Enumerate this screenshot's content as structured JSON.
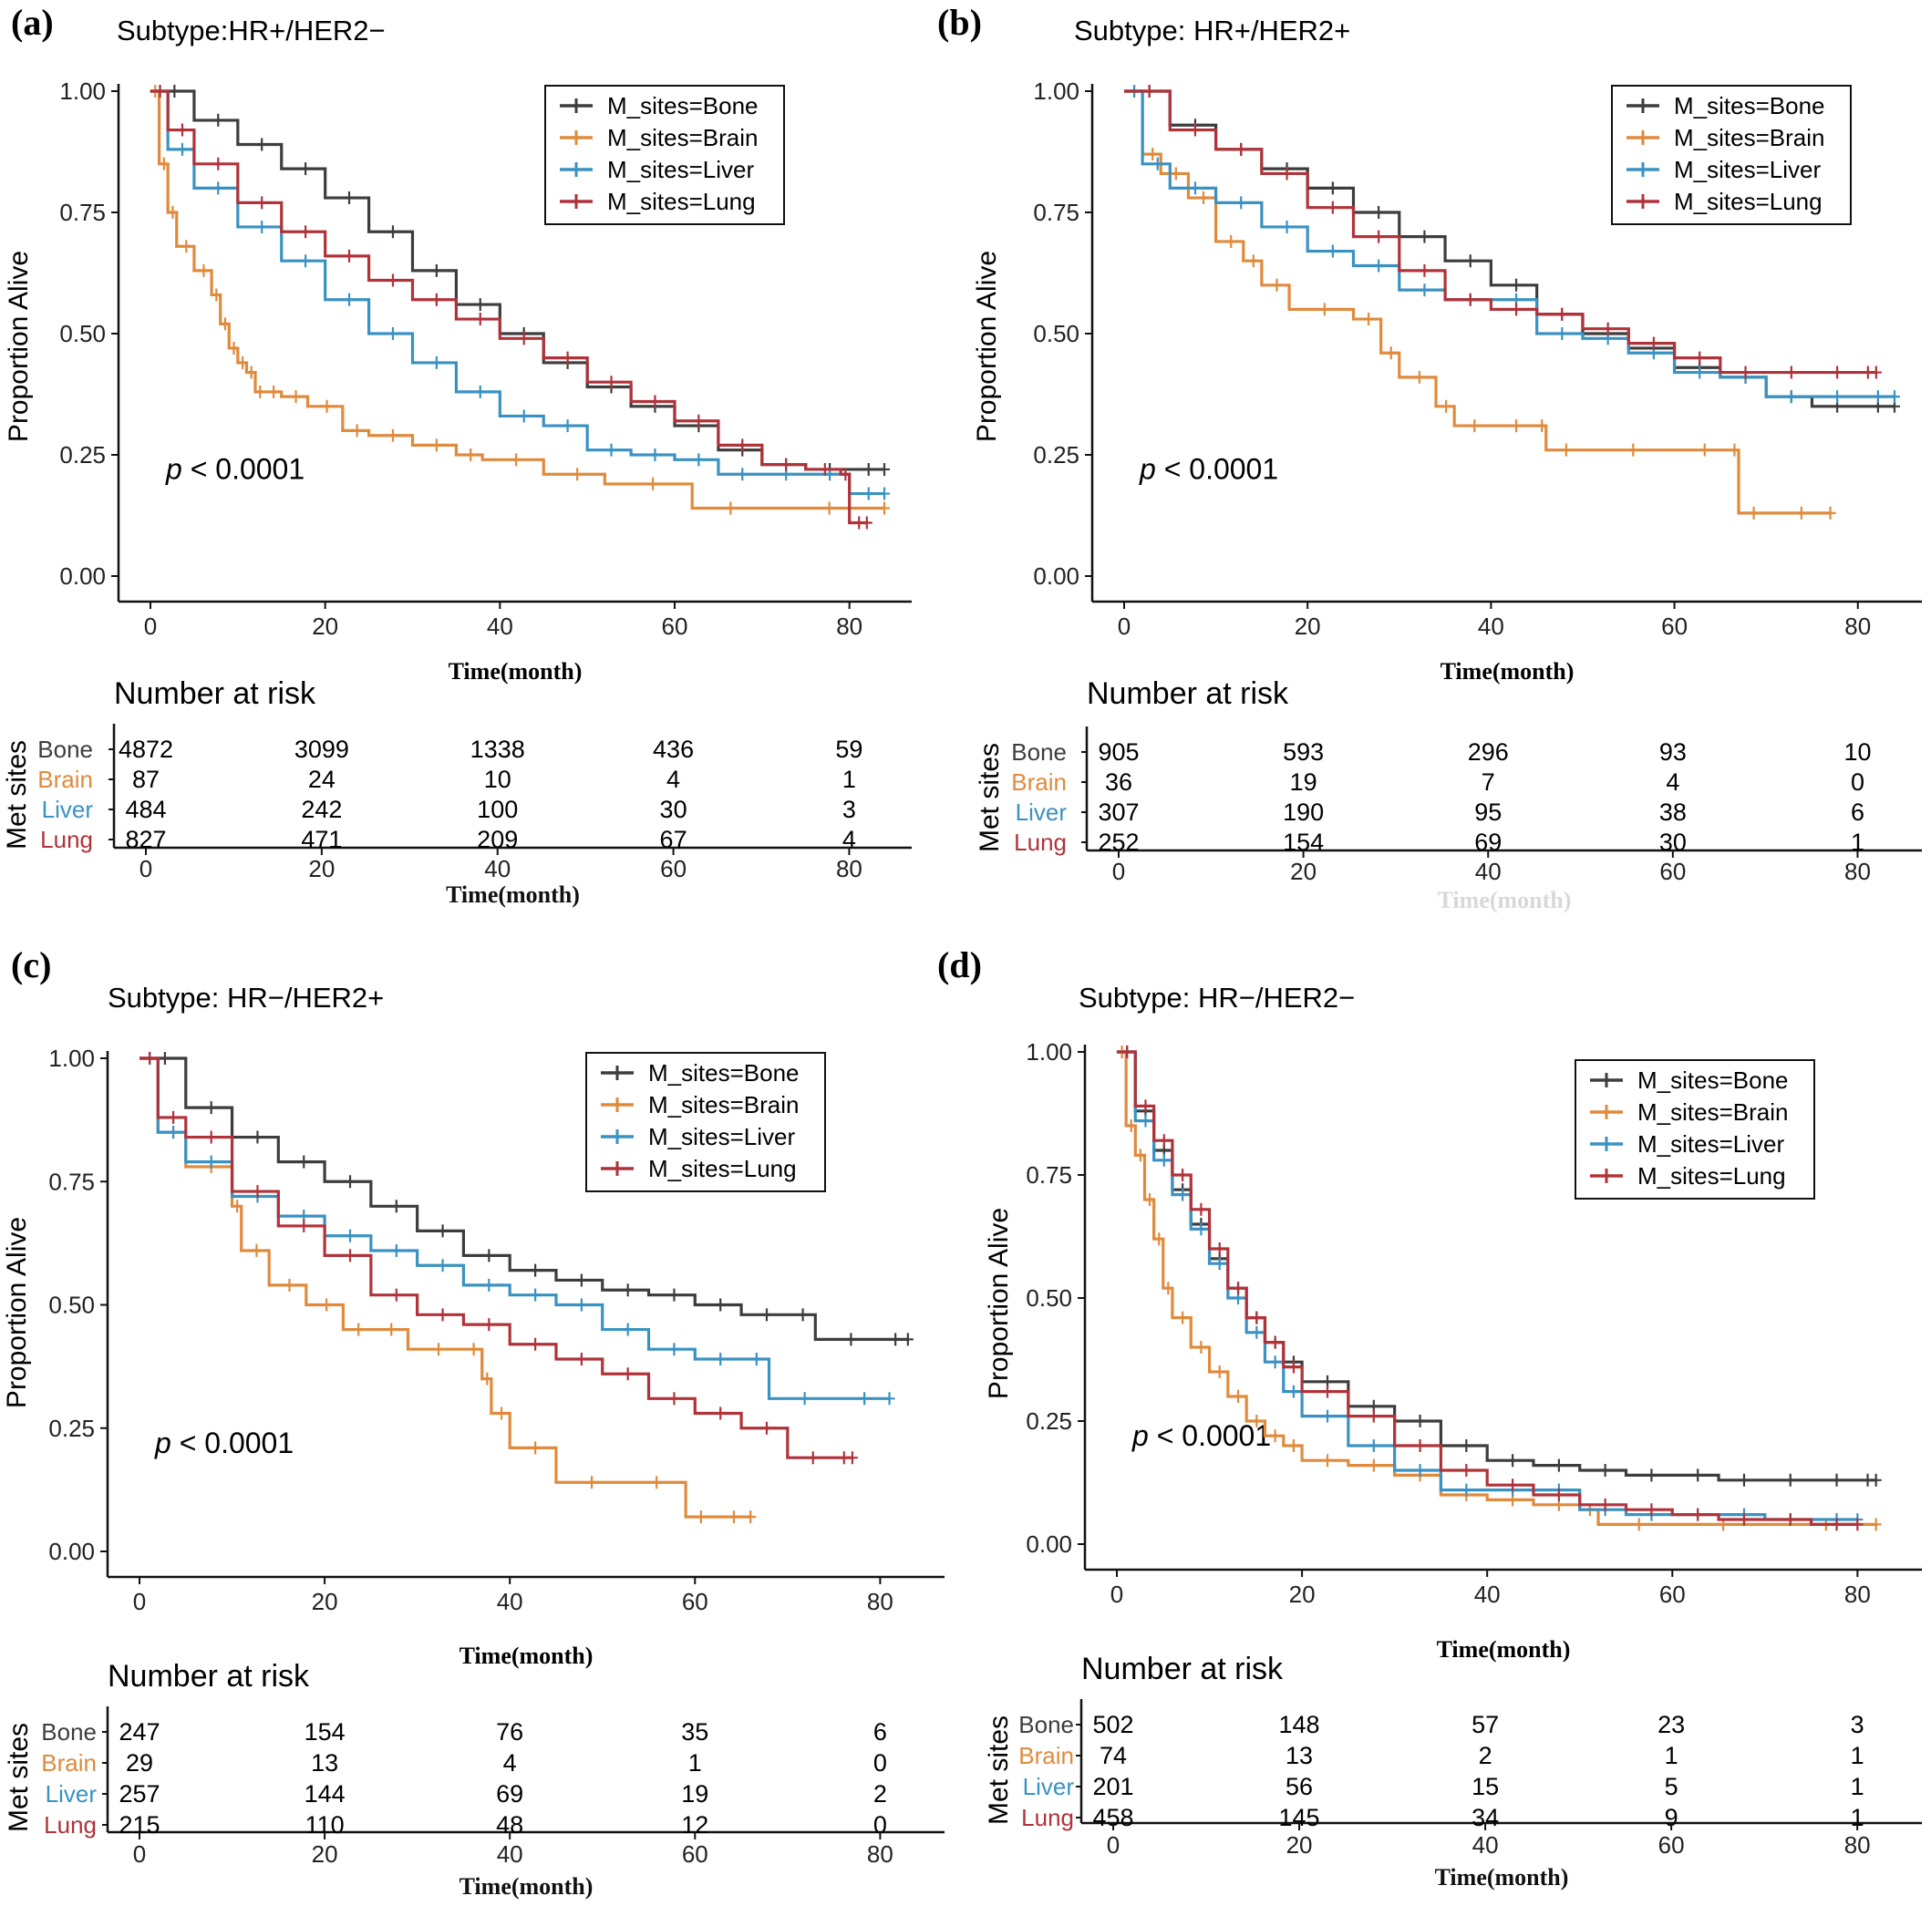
{
  "colors": {
    "Bone": "#3d3d3d",
    "Brain": "#e08a3c",
    "Liver": "#3a92c2",
    "Lung": "#b0333a"
  },
  "chart_data": [
    {
      "type": "line",
      "panel_label": "(a)",
      "title": "Subtype:HR+/HER2−",
      "xlabel": "Time(month)",
      "ylabel": "Proportion Alive",
      "xlim": [
        0,
        84
      ],
      "ylim": [
        0,
        1
      ],
      "x_ticks": [
        "0",
        "20",
        "40",
        "60",
        "80"
      ],
      "y_ticks": [
        "0.00",
        "0.25",
        "0.50",
        "0.75",
        "1.00"
      ],
      "legend_position": "top-right",
      "p_value": "< 0.0001",
      "series": [
        {
          "name": "M_sites=Bone",
          "group": "Bone",
          "x": [
            0,
            5,
            10,
            15,
            20,
            25,
            30,
            35,
            40,
            45,
            50,
            55,
            60,
            65,
            70,
            75,
            80,
            84
          ],
          "y": [
            1,
            0.94,
            0.89,
            0.84,
            0.78,
            0.71,
            0.63,
            0.56,
            0.5,
            0.44,
            0.39,
            0.35,
            0.31,
            0.26,
            0.23,
            0.22,
            0.22,
            0.22
          ]
        },
        {
          "name": "M_sites=Brain",
          "group": "Brain",
          "x": [
            0,
            1,
            2,
            3,
            5,
            7,
            8,
            9,
            10,
            11,
            12,
            13,
            15,
            18,
            22,
            25,
            30,
            35,
            38,
            45,
            52,
            62,
            70,
            84
          ],
          "y": [
            1,
            0.85,
            0.75,
            0.68,
            0.63,
            0.58,
            0.52,
            0.47,
            0.44,
            0.42,
            0.38,
            0.38,
            0.37,
            0.35,
            0.3,
            0.29,
            0.27,
            0.25,
            0.24,
            0.21,
            0.19,
            0.14,
            0.14,
            0.14
          ]
        },
        {
          "name": "M_sites=Liver",
          "group": "Liver",
          "x": [
            0,
            2,
            5,
            10,
            15,
            20,
            25,
            30,
            35,
            40,
            45,
            50,
            55,
            60,
            65,
            70,
            75,
            80,
            84
          ],
          "y": [
            1,
            0.88,
            0.8,
            0.72,
            0.65,
            0.57,
            0.5,
            0.44,
            0.38,
            0.33,
            0.31,
            0.26,
            0.25,
            0.24,
            0.21,
            0.21,
            0.21,
            0.17,
            0.17
          ]
        },
        {
          "name": "M_sites=Lung",
          "group": "Lung",
          "x": [
            0,
            2,
            5,
            10,
            15,
            20,
            25,
            30,
            35,
            40,
            45,
            50,
            55,
            60,
            65,
            70,
            75,
            79,
            80,
            82
          ],
          "y": [
            1,
            0.92,
            0.85,
            0.77,
            0.71,
            0.66,
            0.61,
            0.57,
            0.53,
            0.49,
            0.45,
            0.4,
            0.36,
            0.32,
            0.27,
            0.23,
            0.22,
            0.21,
            0.11,
            0.11
          ]
        }
      ],
      "risk_table": {
        "header": "Number at risk",
        "side_label": "Met sites",
        "x_ticks": [
          "0",
          "20",
          "40",
          "60",
          "80"
        ],
        "xlabel": "Time(month)",
        "rows": [
          {
            "label": "Bone",
            "values": [
              "4872",
              "3099",
              "1338",
              "436",
              "59"
            ]
          },
          {
            "label": "Brain",
            "values": [
              "87",
              "24",
              "10",
              "4",
              "1"
            ]
          },
          {
            "label": "Liver",
            "values": [
              "484",
              "242",
              "100",
              "30",
              "3"
            ]
          },
          {
            "label": "Lung",
            "values": [
              "827",
              "471",
              "209",
              "67",
              "4"
            ]
          }
        ]
      }
    },
    {
      "type": "line",
      "panel_label": "(b)",
      "title": "Subtype: HR+/HER2+",
      "xlabel": "Time(month)",
      "ylabel": "Proportion Alive",
      "xlim": [
        0,
        84
      ],
      "ylim": [
        0,
        1
      ],
      "x_ticks": [
        "0",
        "20",
        "40",
        "60",
        "80"
      ],
      "y_ticks": [
        "0.00",
        "0.25",
        "0.50",
        "0.75",
        "1.00"
      ],
      "legend_position": "top-right",
      "p_value": "< 0.0001",
      "series": [
        {
          "name": "M_sites=Bone",
          "group": "Bone",
          "x": [
            0,
            5,
            10,
            15,
            20,
            25,
            30,
            35,
            40,
            45,
            50,
            55,
            60,
            65,
            70,
            75,
            80,
            84
          ],
          "y": [
            1,
            0.93,
            0.88,
            0.84,
            0.8,
            0.75,
            0.7,
            0.65,
            0.6,
            0.54,
            0.5,
            0.47,
            0.43,
            0.41,
            0.37,
            0.35,
            0.35,
            0.35
          ]
        },
        {
          "name": "M_sites=Brain",
          "group": "Brain",
          "x": [
            0,
            2,
            4,
            7,
            10,
            13,
            15,
            18,
            25,
            28,
            30,
            34,
            36,
            40,
            45,
            46,
            50,
            60,
            66,
            67,
            70,
            77
          ],
          "y": [
            1,
            0.87,
            0.83,
            0.78,
            0.69,
            0.65,
            0.6,
            0.55,
            0.53,
            0.46,
            0.41,
            0.35,
            0.31,
            0.31,
            0.31,
            0.26,
            0.26,
            0.26,
            0.26,
            0.13,
            0.13,
            0.13
          ]
        },
        {
          "name": "M_sites=Liver",
          "group": "Liver",
          "x": [
            0,
            2,
            5,
            10,
            15,
            20,
            25,
            30,
            35,
            40,
            45,
            50,
            55,
            60,
            65,
            70,
            75,
            80,
            84
          ],
          "y": [
            1,
            0.85,
            0.8,
            0.77,
            0.72,
            0.67,
            0.64,
            0.59,
            0.57,
            0.57,
            0.5,
            0.49,
            0.46,
            0.42,
            0.41,
            0.37,
            0.37,
            0.37,
            0.37
          ]
        },
        {
          "name": "M_sites=Lung",
          "group": "Lung",
          "x": [
            0,
            5,
            10,
            15,
            20,
            25,
            30,
            35,
            40,
            45,
            50,
            55,
            60,
            65,
            70,
            75,
            80,
            82
          ],
          "y": [
            1,
            0.92,
            0.88,
            0.83,
            0.76,
            0.7,
            0.63,
            0.57,
            0.55,
            0.54,
            0.51,
            0.48,
            0.45,
            0.42,
            0.42,
            0.42,
            0.42,
            0.42
          ]
        }
      ],
      "risk_table": {
        "header": "Number at risk",
        "side_label": "Met sites",
        "x_ticks": [
          "0",
          "20",
          "40",
          "60",
          "80"
        ],
        "xlabel": "Time(month)",
        "rows": [
          {
            "label": "Bone",
            "values": [
              "905",
              "593",
              "296",
              "93",
              "10"
            ]
          },
          {
            "label": "Brain",
            "values": [
              "36",
              "19",
              "7",
              "4",
              "0"
            ]
          },
          {
            "label": "Liver",
            "values": [
              "307",
              "190",
              "95",
              "38",
              "6"
            ]
          },
          {
            "label": "Lung",
            "values": [
              "252",
              "154",
              "69",
              "30",
              "1"
            ]
          }
        ]
      }
    },
    {
      "type": "line",
      "panel_label": "(c)",
      "title": "Subtype: HR−/HER2+",
      "xlabel": "Time(month)",
      "ylabel": "Proportion Alive",
      "xlim": [
        0,
        84
      ],
      "ylim": [
        0,
        1
      ],
      "x_ticks": [
        "0",
        "20",
        "40",
        "60",
        "80"
      ],
      "y_ticks": [
        "0.00",
        "0.25",
        "0.50",
        "0.75",
        "1.00"
      ],
      "legend_position": "top-right",
      "p_value": "< 0.0001",
      "series": [
        {
          "name": "M_sites=Bone",
          "group": "Bone",
          "x": [
            0,
            5,
            10,
            15,
            20,
            25,
            30,
            35,
            40,
            45,
            50,
            55,
            60,
            65,
            70,
            73,
            80,
            83
          ],
          "y": [
            1,
            0.9,
            0.84,
            0.79,
            0.75,
            0.7,
            0.65,
            0.6,
            0.57,
            0.55,
            0.53,
            0.52,
            0.5,
            0.48,
            0.48,
            0.43,
            0.43,
            0.43
          ]
        },
        {
          "name": "M_sites=Brain",
          "group": "Brain",
          "x": [
            0,
            2,
            5,
            10,
            11,
            14,
            18,
            22,
            25,
            29,
            35,
            37,
            38,
            40,
            45,
            52,
            59,
            62,
            66
          ],
          "y": [
            1,
            0.85,
            0.78,
            0.7,
            0.61,
            0.54,
            0.5,
            0.45,
            0.45,
            0.41,
            0.41,
            0.35,
            0.28,
            0.21,
            0.14,
            0.14,
            0.07,
            0.07,
            0.07
          ]
        },
        {
          "name": "M_sites=Liver",
          "group": "Liver",
          "x": [
            0,
            2,
            5,
            10,
            15,
            20,
            25,
            30,
            35,
            40,
            45,
            50,
            55,
            60,
            65,
            68,
            75,
            81
          ],
          "y": [
            1,
            0.85,
            0.79,
            0.72,
            0.68,
            0.64,
            0.61,
            0.58,
            0.54,
            0.52,
            0.5,
            0.45,
            0.41,
            0.39,
            0.39,
            0.31,
            0.31,
            0.31
          ]
        },
        {
          "name": "M_sites=Lung",
          "group": "Lung",
          "x": [
            0,
            2,
            5,
            10,
            15,
            20,
            25,
            30,
            35,
            40,
            45,
            50,
            55,
            60,
            65,
            70,
            75,
            77
          ],
          "y": [
            1,
            0.88,
            0.84,
            0.73,
            0.66,
            0.6,
            0.52,
            0.48,
            0.46,
            0.42,
            0.39,
            0.36,
            0.31,
            0.28,
            0.25,
            0.19,
            0.19,
            0.19
          ]
        }
      ],
      "risk_table": {
        "header": "Number at risk",
        "side_label": "Met sites",
        "x_ticks": [
          "0",
          "20",
          "40",
          "60",
          "80"
        ],
        "xlabel": "Time(month)",
        "rows": [
          {
            "label": "Bone",
            "values": [
              "247",
              "154",
              "76",
              "35",
              "6"
            ]
          },
          {
            "label": "Brain",
            "values": [
              "29",
              "13",
              "4",
              "1",
              "0"
            ]
          },
          {
            "label": "Liver",
            "values": [
              "257",
              "144",
              "69",
              "19",
              "2"
            ]
          },
          {
            "label": "Lung",
            "values": [
              "215",
              "110",
              "48",
              "12",
              "0"
            ]
          }
        ]
      }
    },
    {
      "type": "line",
      "panel_label": "(d)",
      "title": "Subtype: HR−/HER2−",
      "xlabel": "Time(month)",
      "ylabel": "Proportion Alive",
      "xlim": [
        0,
        84
      ],
      "ylim": [
        0,
        1
      ],
      "x_ticks": [
        "0",
        "20",
        "40",
        "60",
        "80"
      ],
      "y_ticks": [
        "0.00",
        "0.25",
        "0.50",
        "0.75",
        "1.00"
      ],
      "legend_position": "top-right",
      "p_value": "< 0.0001",
      "series": [
        {
          "name": "M_sites=Bone",
          "group": "Bone",
          "x": [
            0,
            2,
            4,
            6,
            8,
            10,
            12,
            14,
            16,
            18,
            20,
            25,
            30,
            35,
            40,
            45,
            50,
            55,
            60,
            65,
            70,
            75,
            80,
            82
          ],
          "y": [
            1,
            0.88,
            0.8,
            0.72,
            0.65,
            0.58,
            0.52,
            0.46,
            0.41,
            0.37,
            0.33,
            0.28,
            0.25,
            0.2,
            0.17,
            0.16,
            0.15,
            0.14,
            0.14,
            0.13,
            0.13,
            0.13,
            0.13,
            0.13
          ]
        },
        {
          "name": "M_sites=Brain",
          "group": "Brain",
          "x": [
            0,
            1,
            2,
            3,
            4,
            5,
            6,
            8,
            10,
            12,
            14,
            16,
            18,
            20,
            25,
            30,
            35,
            40,
            45,
            50,
            52,
            60,
            70,
            82
          ],
          "y": [
            1,
            0.85,
            0.79,
            0.7,
            0.62,
            0.52,
            0.46,
            0.4,
            0.35,
            0.3,
            0.25,
            0.22,
            0.2,
            0.17,
            0.16,
            0.14,
            0.1,
            0.09,
            0.08,
            0.07,
            0.04,
            0.04,
            0.04,
            0.04
          ]
        },
        {
          "name": "M_sites=Liver",
          "group": "Liver",
          "x": [
            0,
            2,
            4,
            6,
            8,
            10,
            12,
            14,
            16,
            18,
            20,
            25,
            30,
            35,
            40,
            45,
            50,
            55,
            60,
            65,
            70,
            75,
            80
          ],
          "y": [
            1,
            0.86,
            0.78,
            0.71,
            0.64,
            0.57,
            0.5,
            0.43,
            0.37,
            0.31,
            0.26,
            0.2,
            0.15,
            0.11,
            0.11,
            0.11,
            0.07,
            0.06,
            0.06,
            0.06,
            0.05,
            0.05,
            0.05
          ]
        },
        {
          "name": "M_sites=Lung",
          "group": "Lung",
          "x": [
            0,
            2,
            4,
            6,
            8,
            10,
            12,
            14,
            16,
            18,
            20,
            25,
            30,
            35,
            40,
            45,
            50,
            55,
            60,
            65,
            70,
            75,
            80
          ],
          "y": [
            1,
            0.89,
            0.82,
            0.75,
            0.68,
            0.6,
            0.52,
            0.46,
            0.41,
            0.36,
            0.31,
            0.26,
            0.2,
            0.15,
            0.12,
            0.1,
            0.08,
            0.07,
            0.06,
            0.05,
            0.05,
            0.04,
            0.04
          ]
        }
      ],
      "risk_table": {
        "header": "Number at risk",
        "side_label": "Met sites",
        "x_ticks": [
          "0",
          "20",
          "40",
          "60",
          "80"
        ],
        "xlabel": "Time(month)",
        "rows": [
          {
            "label": "Bone",
            "values": [
              "502",
              "148",
              "57",
              "23",
              "3"
            ]
          },
          {
            "label": "Brain",
            "values": [
              "74",
              "13",
              "2",
              "1",
              "1"
            ]
          },
          {
            "label": "Liver",
            "values": [
              "201",
              "56",
              "15",
              "5",
              "1"
            ]
          },
          {
            "label": "Lung",
            "values": [
              "458",
              "145",
              "34",
              "9",
              "1"
            ]
          }
        ]
      }
    }
  ]
}
